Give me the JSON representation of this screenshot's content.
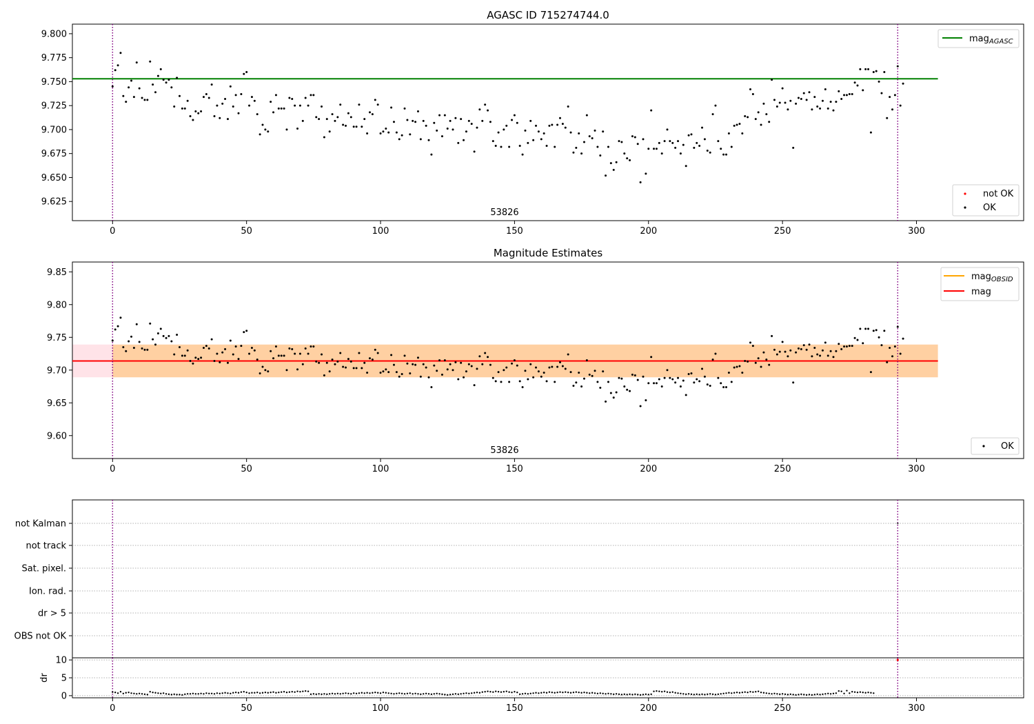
{
  "chart_data": [
    {
      "type": "scatter",
      "title": "AGASC ID 715274744.0",
      "xlim": [
        -15,
        340
      ],
      "ylim": [
        9.605,
        9.81
      ],
      "xticks": [
        0,
        50,
        100,
        150,
        200,
        250,
        300
      ],
      "yticks": [
        9.625,
        9.65,
        9.675,
        9.7,
        9.725,
        9.75,
        9.775,
        9.8
      ],
      "ytick_labels": [
        "9.625",
        "9.650",
        "9.675",
        "9.700",
        "9.725",
        "9.750",
        "9.775",
        "9.800"
      ],
      "annotation": "53826",
      "obs_boundaries": [
        0,
        293
      ],
      "lines": [
        {
          "name": "mag_AGASC",
          "legend_main": "mag",
          "legend_sub": "AGASC",
          "y": 9.753,
          "x_range": [
            -15,
            308
          ],
          "color": "#008000"
        }
      ],
      "series": [
        {
          "name": "not OK",
          "color": "#ff0000",
          "values": []
        },
        {
          "name": "OK",
          "color": "#000000",
          "values": [
            9.745,
            9.762,
            9.767,
            9.78,
            9.735,
            9.729,
            9.744,
            9.751,
            9.734,
            9.77,
            9.743,
            9.733,
            9.731,
            9.731,
            9.771,
            9.747,
            9.739,
            9.756,
            9.763,
            9.752,
            9.749,
            9.752,
            9.744,
            9.724,
            9.754,
            9.735,
            9.722,
            9.722,
            9.73,
            9.714,
            9.71,
            9.719,
            9.717,
            9.719,
            9.734,
            9.737,
            9.733,
            9.747,
            9.714,
            9.725,
            9.712,
            9.727,
            9.732,
            9.711,
            9.745,
            9.724,
            9.736,
            9.717,
            9.737,
            9.758,
            9.76,
            9.725,
            9.734,
            9.73,
            9.716,
            9.695,
            9.705,
            9.7,
            9.698,
            9.729,
            9.718,
            9.736,
            9.722,
            9.722,
            9.722,
            9.7,
            9.733,
            9.732,
            9.725,
            9.701,
            9.725,
            9.709,
            9.733,
            9.725,
            9.736,
            9.736,
            9.713,
            9.711,
            9.724,
            9.692,
            9.711,
            9.698,
            9.716,
            9.709,
            9.713,
            9.726,
            9.705,
            9.704,
            9.717,
            9.713,
            9.703,
            9.703,
            9.726,
            9.703,
            9.711,
            9.696,
            9.718,
            9.716,
            9.731,
            9.726,
            9.696,
            9.698,
            9.701,
            9.697,
            9.723,
            9.708,
            9.697,
            9.69,
            9.694,
            9.722,
            9.71,
            9.695,
            9.709,
            9.708,
            9.719,
            9.69,
            9.709,
            9.704,
            9.689,
            9.674,
            9.707,
            9.699,
            9.715,
            9.693,
            9.715,
            9.701,
            9.709,
            9.7,
            9.712,
            9.686,
            9.711,
            9.689,
            9.698,
            9.709,
            9.706,
            9.677,
            9.702,
            9.721,
            9.709,
            9.726,
            9.72,
            9.708,
            9.688,
            9.683,
            9.697,
            9.682,
            9.7,
            9.704,
            9.682,
            9.71,
            9.715,
            9.707,
            9.683,
            9.674,
            9.699,
            9.686,
            9.709,
            9.689,
            9.704,
            9.698,
            9.69,
            9.696,
            9.683,
            9.704,
            9.705,
            9.682,
            9.705,
            9.712,
            9.706,
            9.702,
            9.724,
            9.697,
            9.676,
            9.681,
            9.696,
            9.675,
            9.687,
            9.715,
            9.693,
            9.691,
            9.699,
            9.682,
            9.673,
            9.698,
            9.652,
            9.682,
            9.665,
            9.658,
            9.666,
            9.688,
            9.687,
            9.675,
            9.67,
            9.668,
            9.693,
            9.692,
            9.685,
            9.645,
            9.69,
            9.654,
            9.68,
            9.72,
            9.68,
            9.68,
            9.686,
            9.675,
            9.688,
            9.7,
            9.688,
            9.686,
            9.681,
            9.688,
            9.675,
            9.684,
            9.662,
            9.694,
            9.695,
            9.681,
            9.686,
            9.683,
            9.702,
            9.69,
            9.678,
            9.676,
            9.716,
            9.725,
            9.688,
            9.68,
            9.674,
            9.674,
            9.696,
            9.682,
            9.704,
            9.705,
            9.706,
            9.696,
            9.714,
            9.713,
            9.742,
            9.737,
            9.711,
            9.718,
            9.705,
            9.727,
            9.716,
            9.708,
            9.752,
            9.731,
            9.724,
            9.728,
            9.743,
            9.728,
            9.721,
            9.73,
            9.681,
            9.727,
            9.733,
            9.732,
            9.738,
            9.731,
            9.739,
            9.721,
            9.734,
            9.724,
            9.722,
            9.73,
            9.742,
            9.722,
            9.729,
            9.72,
            9.729,
            9.74,
            9.732,
            9.736,
            9.736,
            9.737,
            9.737,
            9.749,
            9.746,
            9.763,
            9.741,
            9.763,
            9.763,
            9.697,
            9.76,
            9.761,
            9.75,
            9.738,
            9.76,
            9.712,
            9.734,
            9.721,
            9.736,
            9.766,
            9.725,
            9.748
          ]
        }
      ],
      "legend_lines_placement": "top-right",
      "legend_points_placement": "bottom-right"
    },
    {
      "type": "scatter",
      "title": "Magnitude Estimates",
      "xlim": [
        -15,
        340
      ],
      "ylim": [
        9.565,
        9.865
      ],
      "xticks": [
        0,
        50,
        100,
        150,
        200,
        250,
        300
      ],
      "yticks": [
        9.6,
        9.65,
        9.7,
        9.75,
        9.8,
        9.85
      ],
      "ytick_labels": [
        "9.60",
        "9.65",
        "9.70",
        "9.75",
        "9.80",
        "9.85"
      ],
      "annotation": "53826",
      "obs_boundaries": [
        0,
        293
      ],
      "bands": [
        {
          "name": "mag range",
          "y_range": [
            9.689,
            9.739
          ],
          "x_range": [
            -15,
            308
          ],
          "color": "#ffc0cb"
        },
        {
          "name": "mag_OBSID range",
          "y_range": [
            9.689,
            9.739
          ],
          "x_range": [
            0,
            308
          ],
          "color": "#ffa500"
        }
      ],
      "lines": [
        {
          "name": "mag_OBSID",
          "legend_main": "mag",
          "legend_sub": "OBSID",
          "y": 9.714,
          "x_range": [
            0,
            308
          ],
          "color": "#ffa500"
        },
        {
          "name": "mag",
          "legend_main": "mag",
          "legend_sub": "",
          "y": 9.714,
          "x_range": [
            -15,
            308
          ],
          "color": "#ff0000"
        }
      ],
      "series": [
        {
          "name": "OK",
          "color": "#000000",
          "same_as": "panel0"
        }
      ],
      "legend_lines_placement": "top-right",
      "legend_points_placement": "bottom-right"
    },
    {
      "type": "scatter",
      "title": "",
      "xlim": [
        -15,
        340
      ],
      "xticks": [
        0,
        50,
        100,
        150,
        200,
        250,
        300
      ],
      "flag_categories": [
        "OBS not OK",
        "dr > 5",
        "Ion. rad.",
        "Sat. pixel.",
        "not track",
        "not Kalman"
      ],
      "obs_boundaries": [
        0,
        293
      ],
      "flag_points": [
        {
          "x": 293,
          "category": "not Kalman"
        }
      ],
      "dr": {
        "ylabel": "dr",
        "ylim": [
          -0.6,
          10.6
        ],
        "yticks": [
          0,
          5,
          10
        ],
        "ytick_labels": [
          "0",
          "5",
          "10"
        ],
        "values": [
          1.0,
          0.9,
          0.7,
          1.1,
          0.6,
          0.8,
          0.9,
          0.7,
          0.6,
          0.5,
          0.6,
          0.5,
          0.4,
          0.3,
          1.1,
          0.9,
          0.8,
          0.7,
          0.6,
          0.7,
          0.5,
          0.4,
          0.3,
          0.4,
          0.3,
          0.3,
          0.2,
          0.4,
          0.5,
          0.5,
          0.6,
          0.5,
          0.5,
          0.6,
          0.5,
          0.7,
          0.6,
          0.6,
          0.5,
          0.7,
          0.6,
          0.7,
          0.8,
          0.7,
          0.6,
          0.8,
          0.9,
          0.8,
          1.0,
          1.1,
          0.9,
          0.7,
          0.8,
          0.8,
          0.9,
          0.7,
          0.8,
          0.9,
          0.8,
          0.9,
          1.0,
          0.8,
          0.9,
          1.0,
          1.1,
          0.9,
          1.0,
          1.1,
          1.0,
          1.2,
          1.1,
          1.2,
          1.3,
          1.2,
          0.4,
          0.5,
          0.4,
          0.5,
          0.4,
          0.5,
          0.4,
          0.5,
          0.6,
          0.5,
          0.6,
          0.5,
          0.6,
          0.7,
          0.6,
          0.5,
          0.7,
          0.6,
          0.7,
          0.8,
          0.7,
          0.8,
          0.7,
          0.8,
          0.9,
          0.8,
          0.7,
          0.9,
          0.8,
          0.7,
          0.6,
          0.5,
          0.6,
          0.7,
          0.6,
          0.5,
          0.6,
          0.7,
          0.5,
          0.6,
          0.5,
          0.4,
          0.5,
          0.6,
          0.5,
          0.4,
          0.5,
          0.6,
          0.5,
          0.4,
          0.3,
          0.2,
          0.3,
          0.4,
          0.5,
          0.4,
          0.5,
          0.6,
          0.7,
          0.6,
          0.7,
          0.8,
          0.9,
          0.8,
          1.0,
          1.1,
          1.2,
          1.1,
          1.0,
          1.2,
          1.1,
          1.0,
          1.1,
          1.2,
          1.0,
          0.9,
          1.1,
          0.9,
          0.4,
          0.5,
          0.6,
          0.5,
          0.6,
          0.7,
          0.8,
          0.7,
          0.8,
          0.9,
          0.8,
          1.0,
          0.9,
          0.8,
          0.9,
          1.0,
          0.9,
          1.0,
          0.9,
          0.8,
          0.9,
          1.0,
          0.9,
          0.8,
          0.9,
          0.8,
          0.7,
          0.8,
          0.7,
          0.6,
          0.7,
          0.6,
          0.5,
          0.6,
          0.5,
          0.4,
          0.5,
          0.4,
          0.3,
          0.4,
          0.3,
          0.4,
          0.3,
          0.4,
          0.3,
          0.2,
          0.3,
          0.4,
          0.3,
          0.4,
          1.2,
          1.3,
          1.2,
          1.1,
          1.2,
          1.0,
          0.9,
          1.0,
          0.8,
          0.7,
          0.6,
          0.5,
          0.4,
          0.5,
          0.4,
          0.3,
          0.4,
          0.3,
          0.4,
          0.3,
          0.4,
          0.5,
          0.4,
          0.3,
          0.4,
          0.5,
          0.6,
          0.7,
          0.8,
          0.7,
          0.8,
          0.9,
          0.8,
          0.9,
          1.0,
          0.9,
          1.1,
          1.0,
          1.1,
          1.2,
          0.9,
          0.8,
          0.7,
          0.6,
          0.5,
          0.6,
          0.5,
          0.4,
          0.5,
          0.4,
          0.3,
          0.4,
          0.3,
          0.2,
          0.3,
          0.4,
          0.3,
          0.2,
          0.3,
          0.2,
          0.3,
          0.4,
          0.3,
          0.4,
          0.5,
          0.6,
          0.5,
          0.6,
          0.7,
          1.3,
          1.2,
          0.6,
          1.4,
          0.7,
          1.1,
          1.0,
          0.9,
          1.0,
          0.9,
          0.8,
          0.9,
          0.8,
          0.7
        ]
      },
      "dr_flagged": [
        {
          "x": 293,
          "y": 10
        }
      ]
    }
  ]
}
